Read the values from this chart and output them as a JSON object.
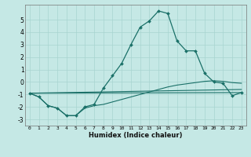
{
  "xlabel": "Humidex (Indice chaleur)",
  "xlim": [
    -0.5,
    23.5
  ],
  "ylim": [
    -3.5,
    6.2
  ],
  "xticks": [
    0,
    1,
    2,
    3,
    4,
    5,
    6,
    7,
    8,
    9,
    10,
    11,
    12,
    13,
    14,
    15,
    16,
    17,
    18,
    19,
    20,
    21,
    22,
    23
  ],
  "yticks": [
    -3,
    -2,
    -1,
    0,
    1,
    2,
    3,
    4,
    5
  ],
  "bg_color": "#c5e8e5",
  "line_color": "#1a7068",
  "grid_color": "#a8d4d0",
  "line1_x": [
    0,
    1,
    2,
    3,
    4,
    5,
    6,
    7,
    8,
    9,
    10,
    11,
    12,
    13,
    14,
    15,
    16,
    17,
    18,
    19,
    20,
    21,
    22,
    23
  ],
  "line1_y": [
    -0.9,
    -1.2,
    -1.9,
    -2.1,
    -2.7,
    -2.7,
    -2.0,
    -1.8,
    -0.5,
    0.5,
    1.5,
    3.0,
    4.4,
    4.9,
    5.7,
    5.5,
    3.3,
    2.5,
    2.5,
    0.7,
    0.0,
    -0.1,
    -1.1,
    -0.85
  ],
  "line2_x": [
    0,
    1,
    2,
    3,
    4,
    5,
    6,
    7,
    8,
    9,
    10,
    11,
    12,
    13,
    14,
    15,
    16,
    17,
    18,
    19,
    20,
    21,
    22,
    23
  ],
  "line2_y": [
    -0.9,
    -1.2,
    -1.9,
    -2.1,
    -2.7,
    -2.7,
    -2.1,
    -1.9,
    -1.8,
    -1.6,
    -1.4,
    -1.2,
    -1.0,
    -0.8,
    -0.6,
    -0.4,
    -0.25,
    -0.15,
    -0.05,
    0.05,
    0.1,
    0.05,
    -0.05,
    -0.1
  ],
  "line3_x": [
    0,
    23
  ],
  "line3_y": [
    -0.9,
    -0.6
  ],
  "line4_x": [
    0,
    23
  ],
  "line4_y": [
    -0.9,
    -0.85
  ]
}
